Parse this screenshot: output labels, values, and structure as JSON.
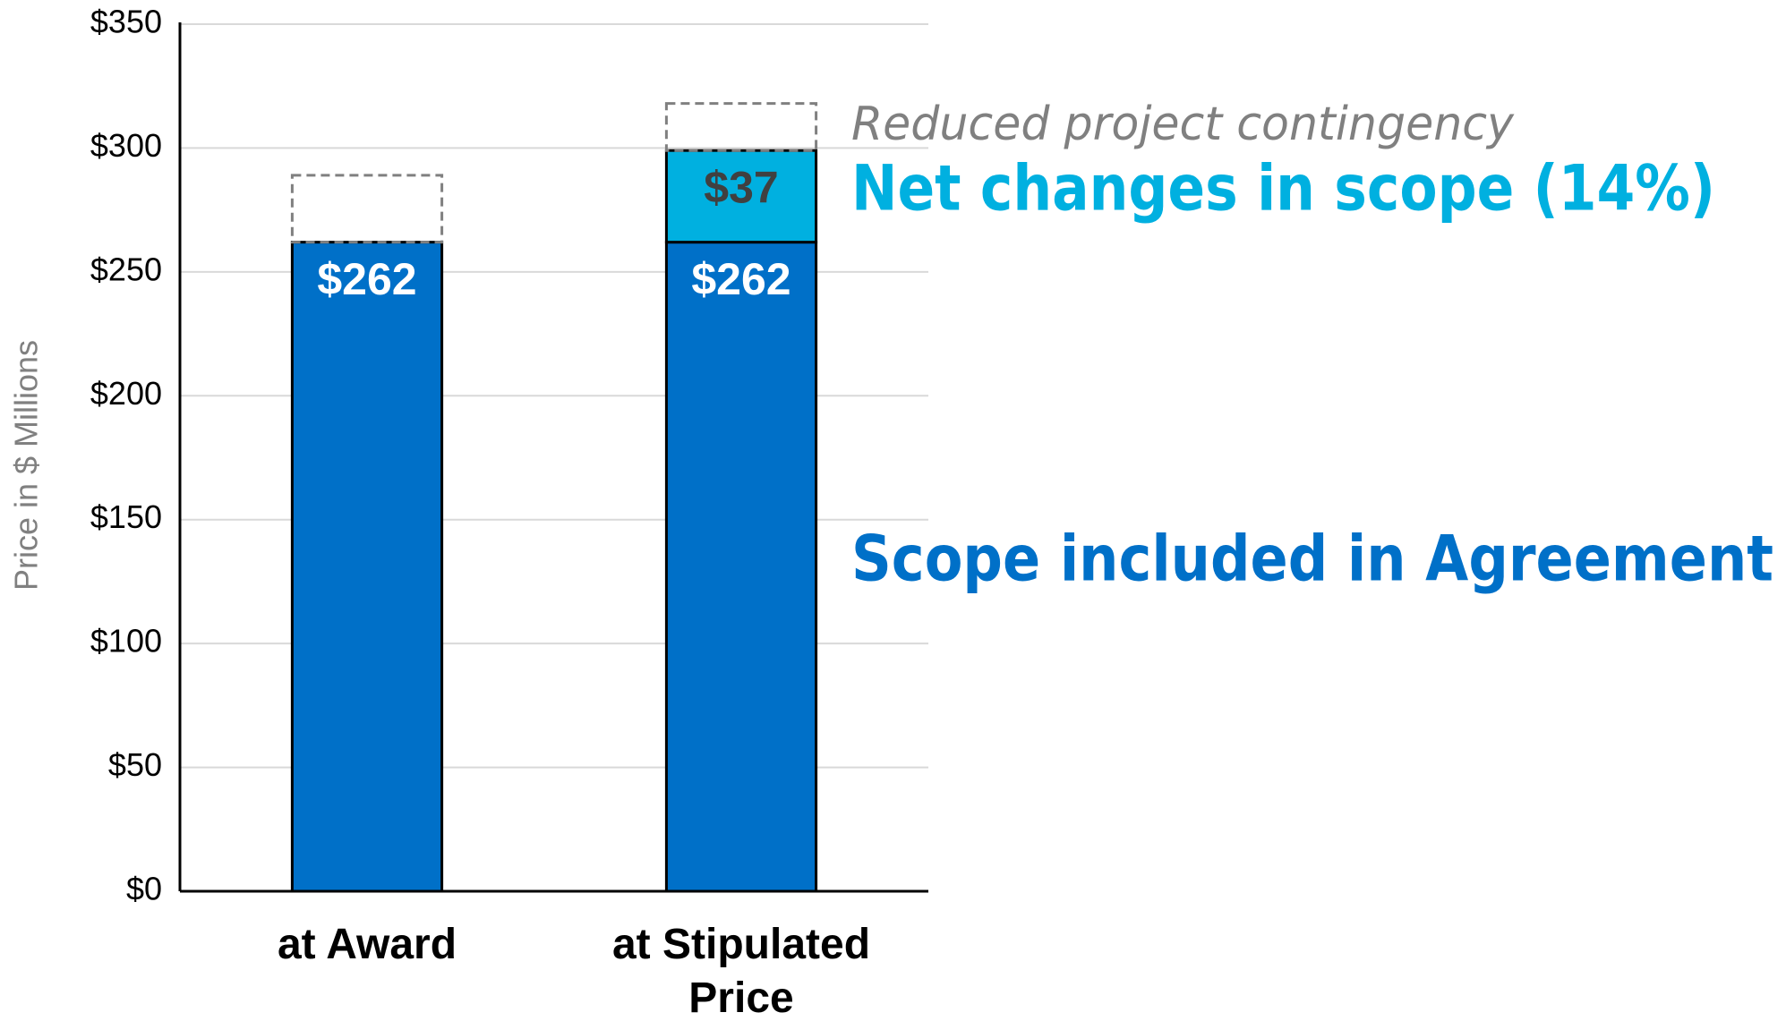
{
  "chart_data": {
    "type": "stacked_bar",
    "ylabel": "Price in $ Millions",
    "categories": [
      "at Award",
      "at Stipulated Price"
    ],
    "series": [
      {
        "name": "Scope included in Agreement",
        "color": "#0070c8",
        "label_color": "#ffffff",
        "values": [
          262,
          262
        ],
        "value_labels": [
          "$262",
          "$262"
        ]
      },
      {
        "name": "Net changes in scope (14%)",
        "color": "#00b0e0",
        "label_color": "#404040",
        "values": [
          null,
          37
        ],
        "value_labels": [
          null,
          "$37"
        ]
      },
      {
        "name": "Reduced project contingency",
        "color": "#808080",
        "style": "dashed",
        "values": [
          27,
          19
        ]
      }
    ],
    "ylim": [
      0,
      350
    ],
    "yticks": [
      {
        "value": 0,
        "label": "$0"
      },
      {
        "value": 50,
        "label": "$50"
      },
      {
        "value": 100,
        "label": "$100"
      },
      {
        "value": 150,
        "label": "$150"
      },
      {
        "value": 200,
        "label": "$200"
      },
      {
        "value": 250,
        "label": "$250"
      },
      {
        "value": 300,
        "label": "$300"
      },
      {
        "value": 350,
        "label": "$350"
      }
    ],
    "grid": true
  }
}
